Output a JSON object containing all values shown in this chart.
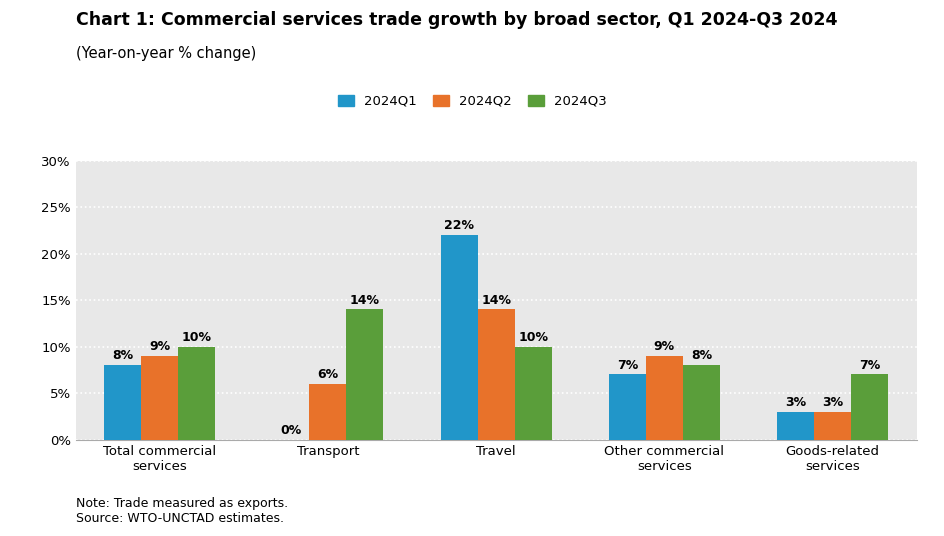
{
  "title_line1": "Chart 1: Commercial services trade growth by broad sector, Q1 2024-Q3 2024",
  "title_line2": "(Year-on-year % change)",
  "categories": [
    "Total commercial\nservices",
    "Transport",
    "Travel",
    "Other commercial\nservices",
    "Goods-related\nservices"
  ],
  "series": {
    "2024Q1": [
      8,
      0,
      22,
      7,
      3
    ],
    "2024Q2": [
      9,
      6,
      14,
      9,
      3
    ],
    "2024Q3": [
      10,
      14,
      10,
      8,
      7
    ]
  },
  "colors": {
    "2024Q1": "#2196C9",
    "2024Q2": "#E8722A",
    "2024Q3": "#5A9E3A"
  },
  "ylim": [
    0,
    30
  ],
  "yticks": [
    0,
    5,
    10,
    15,
    20,
    25,
    30
  ],
  "ytick_labels": [
    "0%",
    "5%",
    "10%",
    "15%",
    "20%",
    "25%",
    "30%"
  ],
  "note": "Note: Trade measured as exports.\nSource: WTO-UNCTAD estimates.",
  "plot_bg_color": "#E8E8E8",
  "grid_color": "#FFFFFF",
  "bar_width": 0.22,
  "title_fontsize": 12.5,
  "subtitle_fontsize": 10.5,
  "label_fontsize": 9,
  "tick_fontsize": 9.5,
  "note_fontsize": 9
}
